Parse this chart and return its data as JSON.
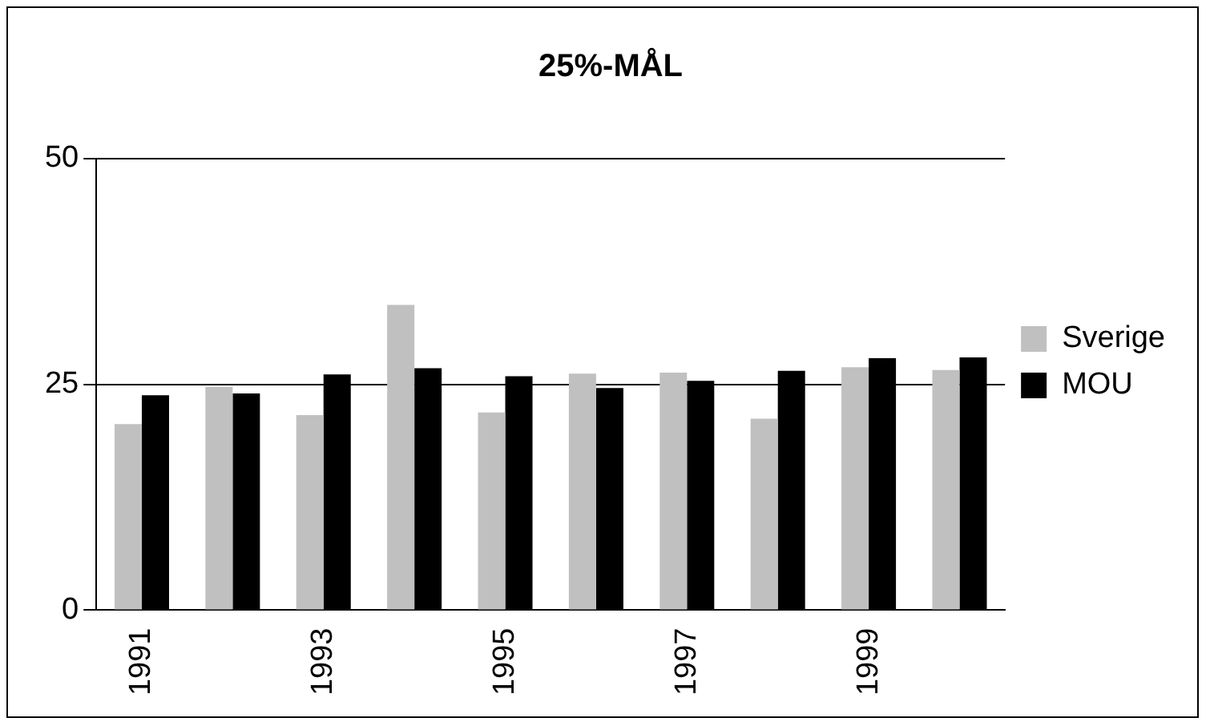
{
  "chart_data": {
    "type": "bar",
    "title": "25%-MÅL",
    "categories": [
      "1991",
      null,
      "1993",
      null,
      "1995",
      null,
      "1997",
      null,
      "1999",
      null
    ],
    "series": [
      {
        "name": "Sverige",
        "color": "#c0c0c0",
        "values": [
          20.6,
          24.7,
          21.6,
          33.8,
          21.9,
          26.2,
          26.3,
          21.2,
          26.9,
          26.6
        ]
      },
      {
        "name": "MOU",
        "color": "#000000",
        "values": [
          23.8,
          24.0,
          26.1,
          26.8,
          25.9,
          24.6,
          25.4,
          26.5,
          27.9,
          28.0
        ]
      }
    ],
    "ylim": [
      0,
      50
    ],
    "yticks": [
      0,
      25,
      50
    ],
    "grid": "y",
    "legend": "right"
  }
}
